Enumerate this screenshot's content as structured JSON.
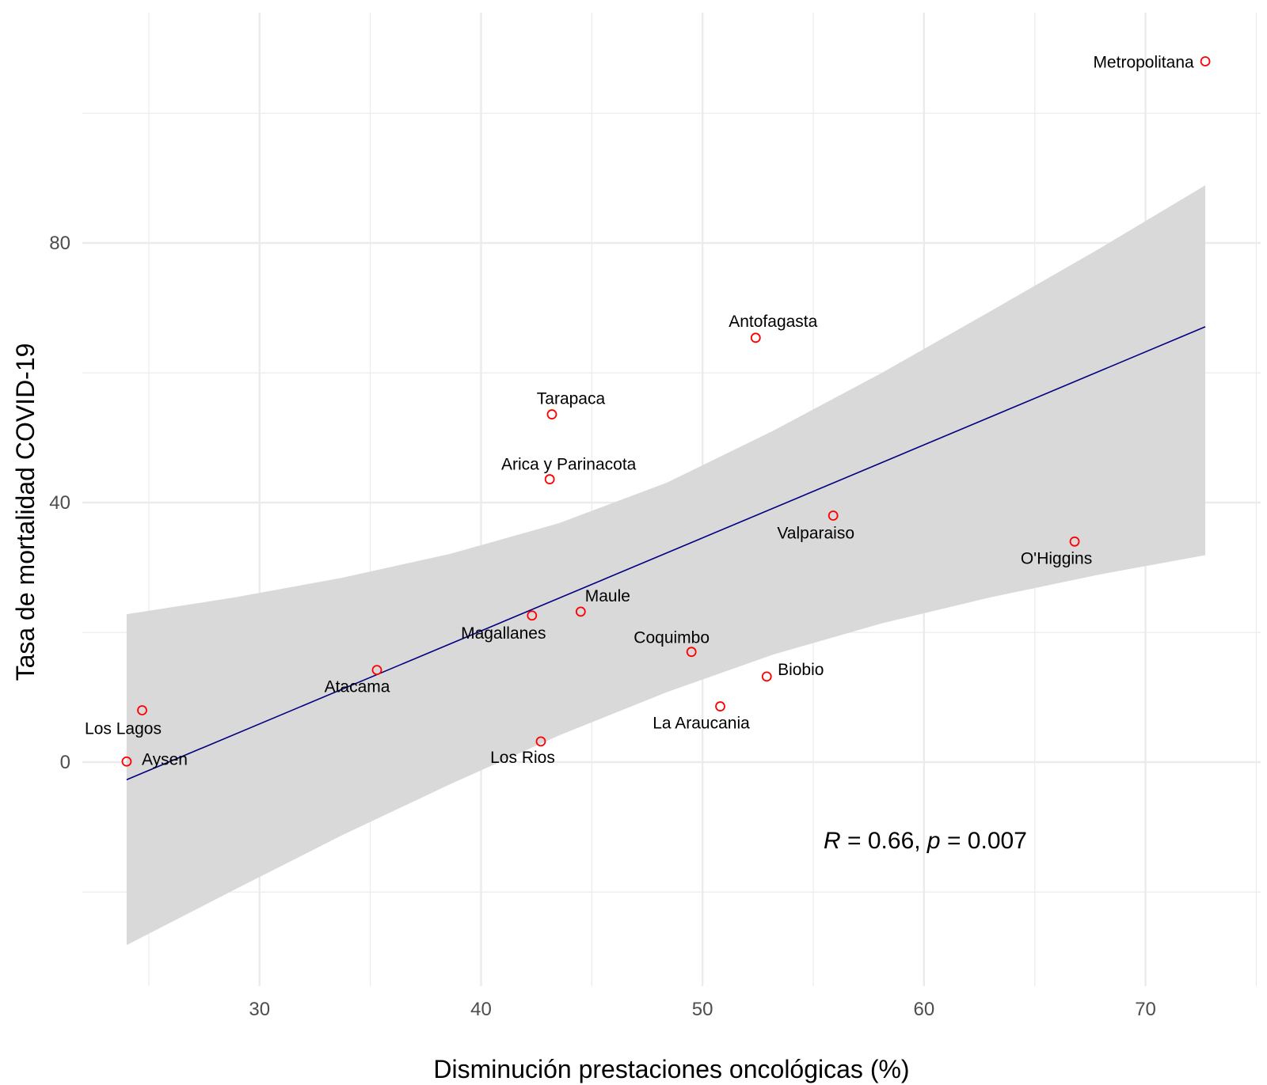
{
  "chart_data": {
    "type": "scatter",
    "xlabel": "Disminución prestaciones oncológicas (%)",
    "ylabel": "Tasa de mortalidad COVID-19",
    "xlim": [
      22,
      75.2
    ],
    "ylim": [
      -34.5,
      115.5
    ],
    "x_ticks": [
      30,
      40,
      50,
      60,
      70
    ],
    "y_ticks": [
      0,
      40,
      80
    ],
    "grid": true,
    "colors": {
      "points": "#ff0000",
      "fit_line": "#000080",
      "confidence_band": "#d9d9d9",
      "grid": "#ebebeb"
    },
    "points": [
      {
        "name": "Metropolitana",
        "x": 72.7,
        "y": 108.0
      },
      {
        "name": "Antofagasta",
        "x": 52.4,
        "y": 65.4
      },
      {
        "name": "Tarapaca",
        "x": 43.2,
        "y": 53.6
      },
      {
        "name": "Arica y Parinacota",
        "x": 43.1,
        "y": 43.6
      },
      {
        "name": "Valparaiso",
        "x": 55.9,
        "y": 38.0
      },
      {
        "name": "O'Higgins",
        "x": 66.8,
        "y": 34.0
      },
      {
        "name": "Maule",
        "x": 44.5,
        "y": 23.2
      },
      {
        "name": "Magallanes",
        "x": 42.3,
        "y": 22.6
      },
      {
        "name": "Coquimbo",
        "x": 49.5,
        "y": 17.0
      },
      {
        "name": "Biobio",
        "x": 52.9,
        "y": 13.2
      },
      {
        "name": "Atacama",
        "x": 35.3,
        "y": 14.2
      },
      {
        "name": "La Araucania",
        "x": 50.8,
        "y": 8.6
      },
      {
        "name": "Los Lagos",
        "x": 24.7,
        "y": 8.0
      },
      {
        "name": "Los Rios",
        "x": 42.7,
        "y": 3.2
      },
      {
        "name": "Aysen",
        "x": 24.0,
        "y": 0.1
      }
    ],
    "fit_line": {
      "x": [
        24.0,
        72.7
      ],
      "y": [
        -2.7,
        67.1
      ]
    },
    "confidence_band": {
      "x": [
        24.0,
        28.9,
        33.7,
        38.6,
        43.5,
        48.4,
        53.2,
        58.1,
        63.0,
        67.9,
        72.7
      ],
      "lower": [
        -28.2,
        -19.6,
        -11.3,
        -3.4,
        4.1,
        10.8,
        16.6,
        21.4,
        25.4,
        28.9,
        31.9
      ],
      "upper": [
        22.8,
        25.4,
        28.4,
        32.1,
        36.8,
        43.1,
        51.1,
        60.0,
        69.5,
        79.1,
        88.9
      ]
    },
    "annotation": {
      "r_symbol": "R",
      "r_value": " = 0.66, ",
      "p_symbol": "p",
      "p_value": " = 0.007"
    }
  }
}
